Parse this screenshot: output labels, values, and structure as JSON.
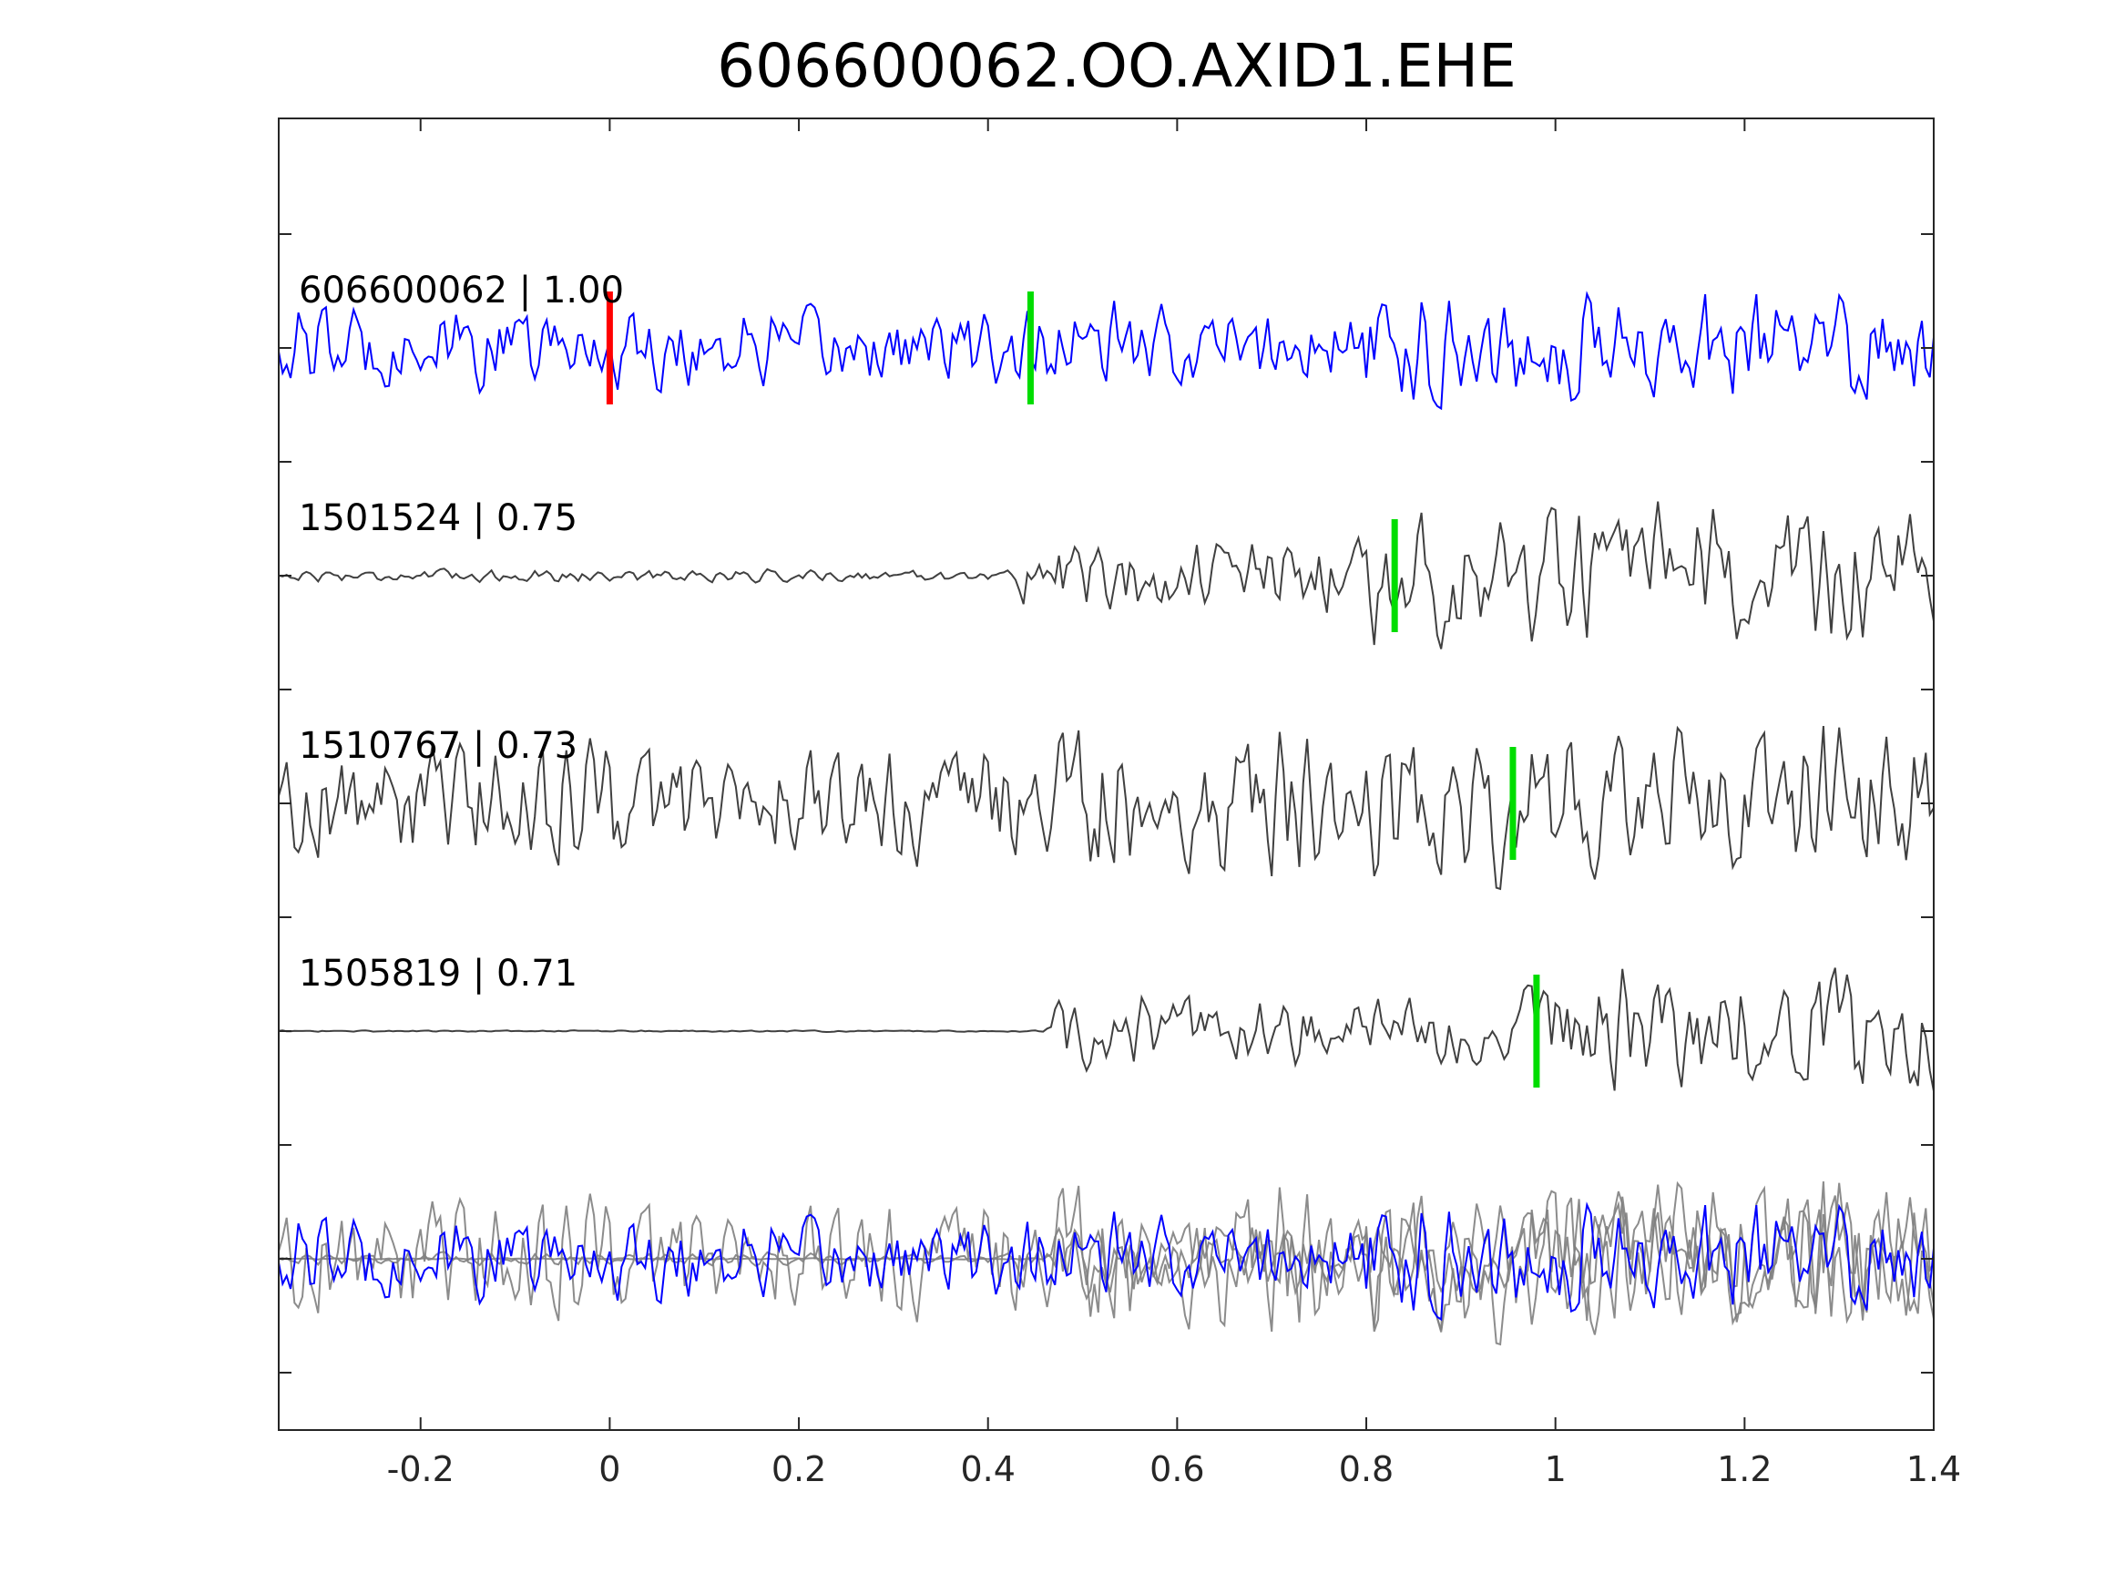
{
  "chart_data": {
    "type": "line",
    "title": "606600062.OO.AXID1.EHE",
    "xlabel": "",
    "ylabel": "",
    "xlim": [
      -0.35,
      1.4
    ],
    "xticks": [
      -0.2,
      0,
      0.2,
      0.4,
      0.6,
      0.8,
      1,
      1.2,
      1.4
    ],
    "xtick_labels": [
      "-0.2",
      "0",
      "0.2",
      "0.4",
      "0.6",
      "0.8",
      "1",
      "1.2",
      "1.4"
    ],
    "grid": false,
    "traces": [
      {
        "label": "606600062 | 1.00",
        "color": "#0000ff",
        "onset": -0.35,
        "noise": 0.55,
        "amp_after": 0.75,
        "arrival": 0.78,
        "picks": [
          {
            "time": 0.0,
            "color": "#ff0000"
          },
          {
            "time": 0.445,
            "color": "#00dd00"
          }
        ]
      },
      {
        "label": "1501524 | 0.75",
        "color": "#404040",
        "onset": 0.43,
        "noise": 0.08,
        "amp_after": 0.9,
        "arrival": 0.8,
        "picks": [
          {
            "time": 0.83,
            "color": "#00dd00"
          }
        ]
      },
      {
        "label": "1510767 | 0.73",
        "color": "#404040",
        "onset": -0.35,
        "noise": 0.8,
        "amp_after": 1.0,
        "arrival": 0.45,
        "picks": [
          {
            "time": 0.955,
            "color": "#00dd00"
          }
        ]
      },
      {
        "label": "1505819 | 0.71",
        "color": "#404040",
        "onset": 0.46,
        "noise": 0.01,
        "amp_after": 0.8,
        "arrival": 0.95,
        "picks": [
          {
            "time": 0.98,
            "color": "#00dd00"
          }
        ]
      }
    ],
    "overlay_color": "#808080"
  }
}
